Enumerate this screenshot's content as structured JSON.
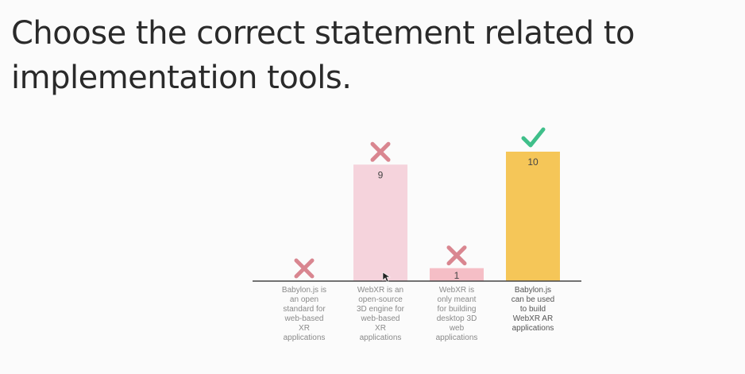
{
  "question": {
    "text": "Choose the correct statement related to implementation tools."
  },
  "chart_data": {
    "type": "bar",
    "categories": [
      "Babylon.js is an open standard for web-based XR applications",
      "WebXR is an open-source 3D engine for web-based XR applications",
      "WebXR is only meant for building desktop 3D web applications",
      "Babylon.js can be used to build WebXR AR applications"
    ],
    "category_lines": [
      [
        "Babylon.js is",
        "an open",
        "standard for",
        "web-based",
        "XR",
        "applications"
      ],
      [
        "WebXR is an",
        "open-source",
        "3D engine for",
        "web-based",
        "XR",
        "applications"
      ],
      [
        "WebXR is",
        "only meant",
        "for building",
        "desktop 3D",
        "web",
        "applications"
      ],
      [
        "Babylon.js",
        "can be used",
        "to build",
        "WebXR AR",
        "applications"
      ]
    ],
    "values": [
      0,
      9,
      1,
      10
    ],
    "value_labels": [
      "",
      "9",
      "1",
      "10"
    ],
    "correct": [
      false,
      false,
      false,
      true
    ],
    "bar_colors": [
      "#f5d3dc",
      "#f5d3dc",
      "#f5bec6",
      "#f5c658"
    ],
    "mark_colors": {
      "wrong": "#d98690",
      "correct": "#3fbf8a"
    },
    "mark_icons": {
      "wrong": "cross-icon",
      "correct": "check-icon"
    },
    "ylim": [
      0,
      10
    ]
  }
}
